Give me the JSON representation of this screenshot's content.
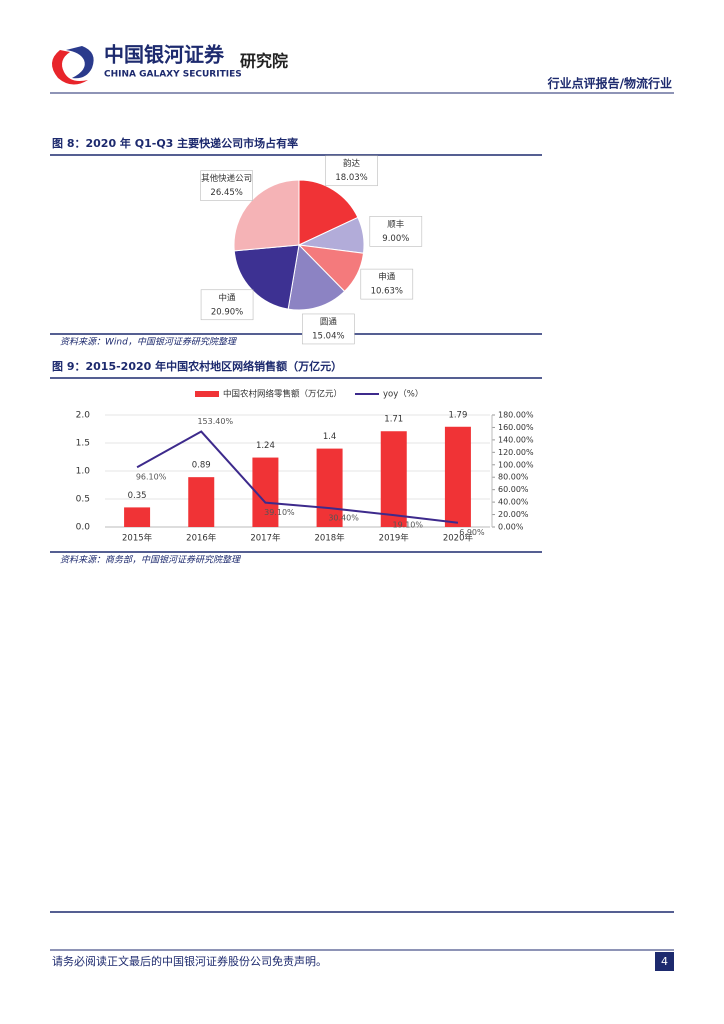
{
  "header": {
    "logo_cn": "中国银河证券",
    "logo_en": "CHINA GALAXY SECURITIES",
    "institute": "研究院",
    "section": "行业点评报告/物流行业"
  },
  "chart_data": [
    {
      "type": "pie",
      "title": "图 8：2020 年 Q1-Q3 主要快递公司市场占有率",
      "categories": [
        "韵达",
        "顺丰",
        "申通",
        "圆通",
        "中通",
        "其他快递公司"
      ],
      "values": [
        18.03,
        9.0,
        10.63,
        15.04,
        20.9,
        26.45
      ],
      "value_labels": [
        "18.03%",
        "9.00%",
        "10.63%",
        "15.04%",
        "20.90%",
        "26.45%"
      ],
      "colors": [
        "#f03336",
        "#b2acd9",
        "#f47a7c",
        "#8c83c3",
        "#3d3192",
        "#f5b3b6"
      ],
      "source": "资料来源：Wind，中国银河证券研究院整理"
    },
    {
      "type": "bar",
      "title": "图 9：2015-2020 年中国农村地区网络销售额（万亿元）",
      "categories": [
        "2015年",
        "2016年",
        "2017年",
        "2018年",
        "2019年",
        "2020年"
      ],
      "series": [
        {
          "name": "中国农村网络零售额（万亿元）",
          "color": "#f03336",
          "type": "bar",
          "values": [
            0.35,
            0.89,
            1.24,
            1.4,
            1.71,
            1.79
          ]
        },
        {
          "name": "yoy（%）",
          "color": "#3d2a8c",
          "type": "line",
          "axis": "y2",
          "values": [
            96.1,
            153.4,
            39.1,
            30.4,
            19.1,
            6.9
          ],
          "value_labels": [
            "96.10%",
            "153.40%",
            "39.10%",
            "30.40%",
            "19.10%",
            "6.90%"
          ]
        }
      ],
      "ylim": [
        0,
        2
      ],
      "yticks": [
        {
          "value": 0,
          "label": "0.0"
        },
        {
          "value": 0.5,
          "label": "0.5"
        },
        {
          "value": 1,
          "label": "1.0"
        },
        {
          "value": 1.5,
          "label": "1.5"
        },
        {
          "value": 2,
          "label": "2.0"
        }
      ],
      "y2lim": [
        0,
        180
      ],
      "y2ticks": [
        {
          "value": 0,
          "label": "0.00%"
        },
        {
          "value": 20,
          "label": "20.00%"
        },
        {
          "value": 40,
          "label": "40.00%"
        },
        {
          "value": 60,
          "label": "60.00%"
        },
        {
          "value": 80,
          "label": "80.00%"
        },
        {
          "value": 100,
          "label": "100.00%"
        },
        {
          "value": 120,
          "label": "120.00%"
        },
        {
          "value": 140,
          "label": "140.00%"
        },
        {
          "value": 160,
          "label": "160.00%"
        },
        {
          "value": 180,
          "label": "180.00%"
        }
      ],
      "grid": true,
      "source": "资料来源：商务部，中国银河证券研究院整理"
    }
  ],
  "footer": {
    "disclaimer": "请务必阅读正文最后的中国银河证券股份公司免责声明。",
    "page": "4"
  }
}
